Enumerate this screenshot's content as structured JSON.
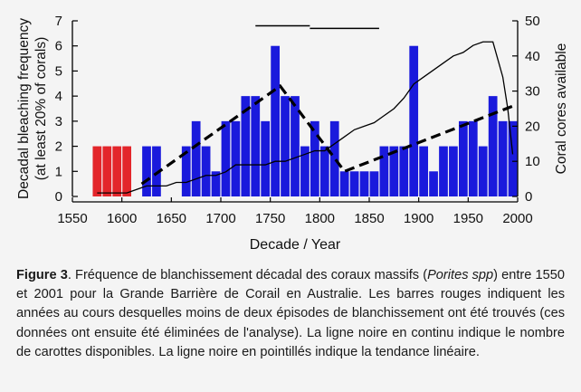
{
  "chart_data": {
    "type": "bar",
    "xlabel": "Decade / Year",
    "ylabel_left": [
      "Decadal bleaching frequency",
      "(at least 20% of corals)"
    ],
    "ylabel_right": "Coral cores available",
    "xlim": [
      1550,
      2000
    ],
    "ylim_left": [
      0,
      7
    ],
    "ylim_right": [
      0,
      50
    ],
    "x_ticks": [
      1550,
      1600,
      1650,
      1700,
      1750,
      1800,
      1850,
      1900,
      1950,
      2000
    ],
    "y_ticks_left": [
      0,
      1,
      2,
      3,
      4,
      5,
      6,
      7
    ],
    "y_ticks_right": [
      0,
      10,
      20,
      30,
      40,
      50
    ],
    "bar_width_years": 10,
    "colors": {
      "excluded": "#e3262b",
      "included": "#1a1adc",
      "line": "#000000",
      "axes": "#000000"
    },
    "series": [
      {
        "kind": "bar",
        "x": [
          1575,
          1585,
          1595,
          1605,
          1625,
          1635,
          1665,
          1675,
          1685,
          1695,
          1705,
          1715,
          1725,
          1735,
          1745,
          1755,
          1765,
          1775,
          1785,
          1795,
          1805,
          1815,
          1825,
          1835,
          1845,
          1855,
          1865,
          1875,
          1885,
          1895,
          1905,
          1915,
          1925,
          1935,
          1945,
          1955,
          1965,
          1975,
          1985,
          1995
        ],
        "values": [
          2,
          2,
          2,
          2,
          2,
          2,
          2,
          3,
          2,
          1,
          3,
          3,
          4,
          4,
          3,
          6,
          4,
          4,
          2,
          3,
          2,
          3,
          1,
          1,
          1,
          1,
          2,
          2,
          2,
          6,
          2,
          1,
          2,
          2,
          3,
          3,
          2,
          4,
          3,
          3
        ],
        "excluded": [
          true,
          true,
          true,
          true,
          false,
          false,
          false,
          false,
          false,
          false,
          false,
          false,
          false,
          false,
          false,
          false,
          false,
          false,
          false,
          false,
          false,
          false,
          false,
          false,
          false,
          false,
          false,
          false,
          false,
          false,
          false,
          false,
          false,
          false,
          false,
          false,
          false,
          false,
          false,
          false
        ]
      },
      {
        "kind": "line",
        "axis": "right",
        "style": "solid",
        "x": [
          1575,
          1585,
          1595,
          1605,
          1615,
          1625,
          1635,
          1645,
          1655,
          1665,
          1675,
          1685,
          1695,
          1705,
          1715,
          1725,
          1735,
          1745,
          1755,
          1765,
          1775,
          1785,
          1795,
          1805,
          1815,
          1825,
          1835,
          1845,
          1855,
          1865,
          1875,
          1885,
          1895,
          1905,
          1915,
          1925,
          1935,
          1945,
          1955,
          1965,
          1975,
          1985,
          1990,
          1995
        ],
        "values": [
          1,
          1,
          1,
          1,
          2,
          3,
          3,
          3,
          4,
          4,
          5,
          6,
          6,
          7,
          9,
          9,
          9,
          9,
          10,
          10,
          11,
          12,
          13,
          13,
          15,
          17,
          19,
          20,
          21,
          23,
          25,
          28,
          32,
          34,
          36,
          38,
          40,
          41,
          43,
          44,
          44,
          34,
          25,
          12
        ]
      },
      {
        "kind": "line",
        "axis": "left",
        "style": "dashed",
        "x": [
          1620,
          1760,
          1825,
          1995
        ],
        "values": [
          0.5,
          4.4,
          1.0,
          3.6
        ]
      },
      {
        "kind": "segment",
        "axis": "left",
        "x": [
          1735,
          1790
        ],
        "values": [
          6.8,
          6.8
        ]
      },
      {
        "kind": "segment",
        "axis": "left",
        "x": [
          1790,
          1860
        ],
        "values": [
          6.7,
          6.7
        ]
      }
    ]
  },
  "caption": {
    "label": "Figure 3",
    "text_before_italic": ". Fréquence de blanchissement décadal des coraux massifs (",
    "italic": "Porites spp",
    "text_after_italic": ") entre 1550 et 2001 pour la Grande Barrière de Corail en Australie. Les barres rouges indiquent les années au cours desquelles moins de deux épisodes de blanchissement ont été trouvés (ces données ont ensuite été éliminées de l'analyse). La ligne noire en continu indique le nombre de carottes disponibles. La ligne noire en pointillés indique la tendance linéaire."
  }
}
